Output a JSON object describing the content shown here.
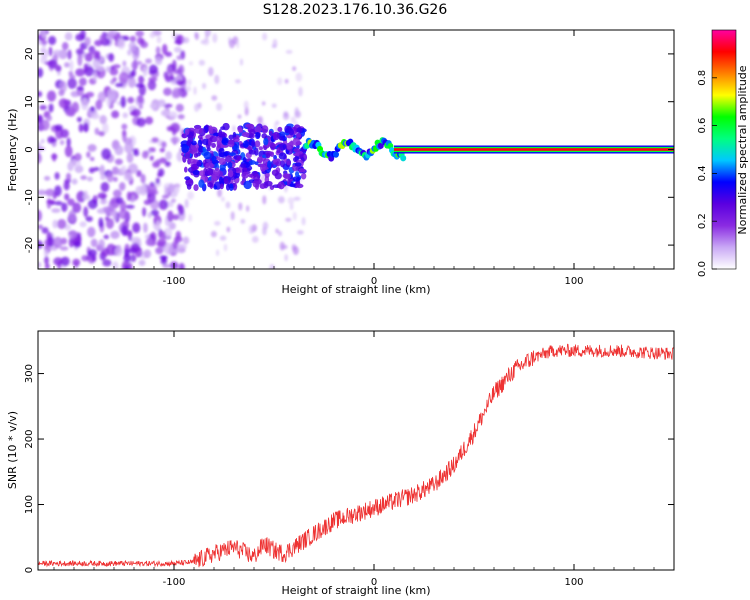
{
  "figure": {
    "title": "S128.2023.176.10.36.G26"
  },
  "chart_data": [
    {
      "type": "heatmap",
      "xlabel": "Height of straight line (km)",
      "ylabel": "Frequency (Hz)",
      "xlim": [
        -168,
        150
      ],
      "ylim": [
        -25,
        25
      ],
      "x_ticks": [
        -100,
        0,
        100
      ],
      "y_ticks": [
        -20,
        -10,
        0,
        10,
        20
      ],
      "colorbar": {
        "label": "Normalized spectral amplitude",
        "range": [
          0,
          1
        ],
        "ticks": [
          0.0,
          0.2,
          0.4,
          0.6,
          0.8
        ],
        "tick_labels": [
          "0.0",
          "0.2",
          "0.4",
          "0.6",
          "0.8"
        ],
        "colormap": [
          "#ffffff",
          "#c9a8f5",
          "#8a2be2",
          "#5a00e0",
          "#0000ff",
          "#00c8ff",
          "#00ff80",
          "#00ff00",
          "#ffff00",
          "#ff8000",
          "#ff0000",
          "#ff00a0"
        ]
      },
      "description_regions": [
        {
          "x_range": [
            -168,
            -95
          ],
          "content": "scattered noise across all frequencies, amplitude 0.05-0.2"
        },
        {
          "x_range": [
            -95,
            -35
          ],
          "content": "noisy blob near 0 Hz (-8 to 5 Hz), amplitude 0.2-0.4"
        },
        {
          "x_range": [
            -35,
            15
          ],
          "content": "narrow line near 0 Hz with small wiggles, amplitude 0.3-0.7"
        },
        {
          "x_range": [
            15,
            150
          ],
          "content": "steady narrow line at 0 Hz, amplitude 0.8-1.0"
        }
      ]
    },
    {
      "type": "line",
      "xlabel": "Height of straight line (km)",
      "ylabel": "SNR (10 * v/v)",
      "xlim": [
        -168,
        150
      ],
      "ylim": [
        0,
        365
      ],
      "x_ticks": [
        -100,
        0,
        100
      ],
      "y_ticks": [
        0,
        100,
        200,
        300
      ],
      "series": [
        {
          "color": "#ee3333",
          "x": [
            -168,
            -130,
            -100,
            -90,
            -80,
            -70,
            -60,
            -55,
            -50,
            -45,
            -40,
            -30,
            -20,
            -10,
            0,
            10,
            20,
            30,
            40,
            50,
            60,
            70,
            80,
            90,
            100,
            120,
            150
          ],
          "values": [
            10,
            10,
            10,
            12,
            25,
            35,
            20,
            40,
            30,
            25,
            35,
            55,
            75,
            85,
            95,
            105,
            115,
            130,
            160,
            210,
            270,
            305,
            325,
            335,
            335,
            335,
            330
          ]
        }
      ]
    }
  ]
}
